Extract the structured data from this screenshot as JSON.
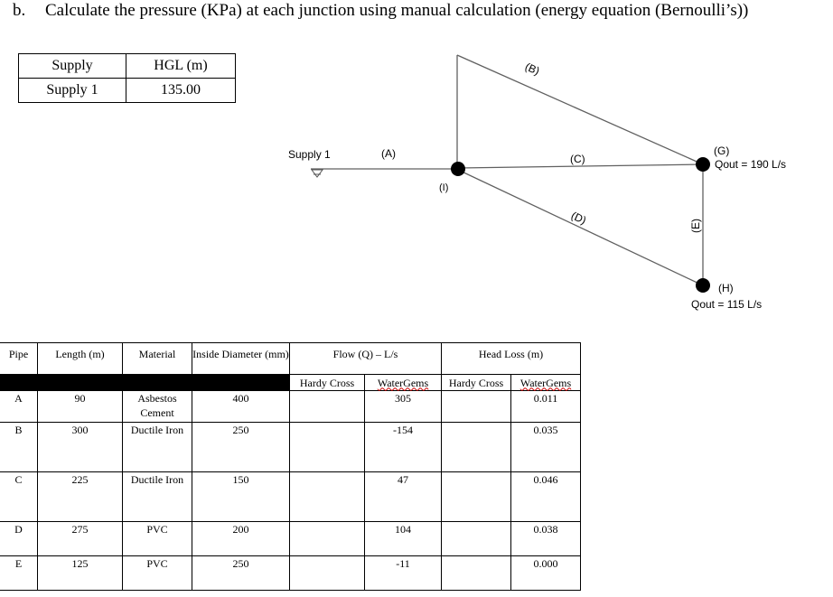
{
  "heading": {
    "prefix": "b.",
    "text": "Calculate the pressure (KPa) at each junction using manual calculation (energy equation (Bernoulli’s))"
  },
  "supply_table": {
    "headers": [
      "Supply",
      "HGL (m)"
    ],
    "rows": [
      [
        "Supply 1",
        "135.00"
      ]
    ]
  },
  "diagram": {
    "supply_label": "Supply 1",
    "pipes": {
      "A": "(A)",
      "B": "(B)",
      "C": "(C)",
      "D": "(D)",
      "E": "(E)"
    },
    "nodes": {
      "I": "(I)",
      "G": "(G)",
      "H": "(H)"
    },
    "demands": {
      "G": "Qout = 190 L/s",
      "H": "Qout = 115 L/s"
    }
  },
  "pipe_table": {
    "headers": {
      "pipe": "Pipe",
      "length": "Length (m)",
      "material": "Material",
      "diameter": "Inside Diameter (mm)",
      "flow": "Flow (Q) – L/s",
      "headloss": "Head Loss (m)"
    },
    "subheaders": [
      "Hardy Cross",
      "WaterGems",
      "Hardy Cross",
      "WaterGems"
    ],
    "rows": [
      {
        "pipe": "A",
        "length": "90",
        "material": "Asbestos Cement",
        "diameter": "400",
        "flow_hc": "",
        "flow_wg": "305",
        "hl_hc": "",
        "hl_wg": "0.011"
      },
      {
        "pipe": "B",
        "length": "300",
        "material": "Ductile Iron",
        "diameter": "250",
        "flow_hc": "",
        "flow_wg": "-154",
        "hl_hc": "",
        "hl_wg": "0.035"
      },
      {
        "pipe": "C",
        "length": "225",
        "material": "Ductile Iron",
        "diameter": "150",
        "flow_hc": "",
        "flow_wg": "47",
        "hl_hc": "",
        "hl_wg": "0.046"
      },
      {
        "pipe": "D",
        "length": "275",
        "material": "PVC",
        "diameter": "200",
        "flow_hc": "",
        "flow_wg": "104",
        "hl_hc": "",
        "hl_wg": "0.038"
      },
      {
        "pipe": "E",
        "length": "125",
        "material": "PVC",
        "diameter": "250",
        "flow_hc": "",
        "flow_wg": "-11",
        "hl_hc": "",
        "hl_wg": "0.000"
      }
    ]
  }
}
